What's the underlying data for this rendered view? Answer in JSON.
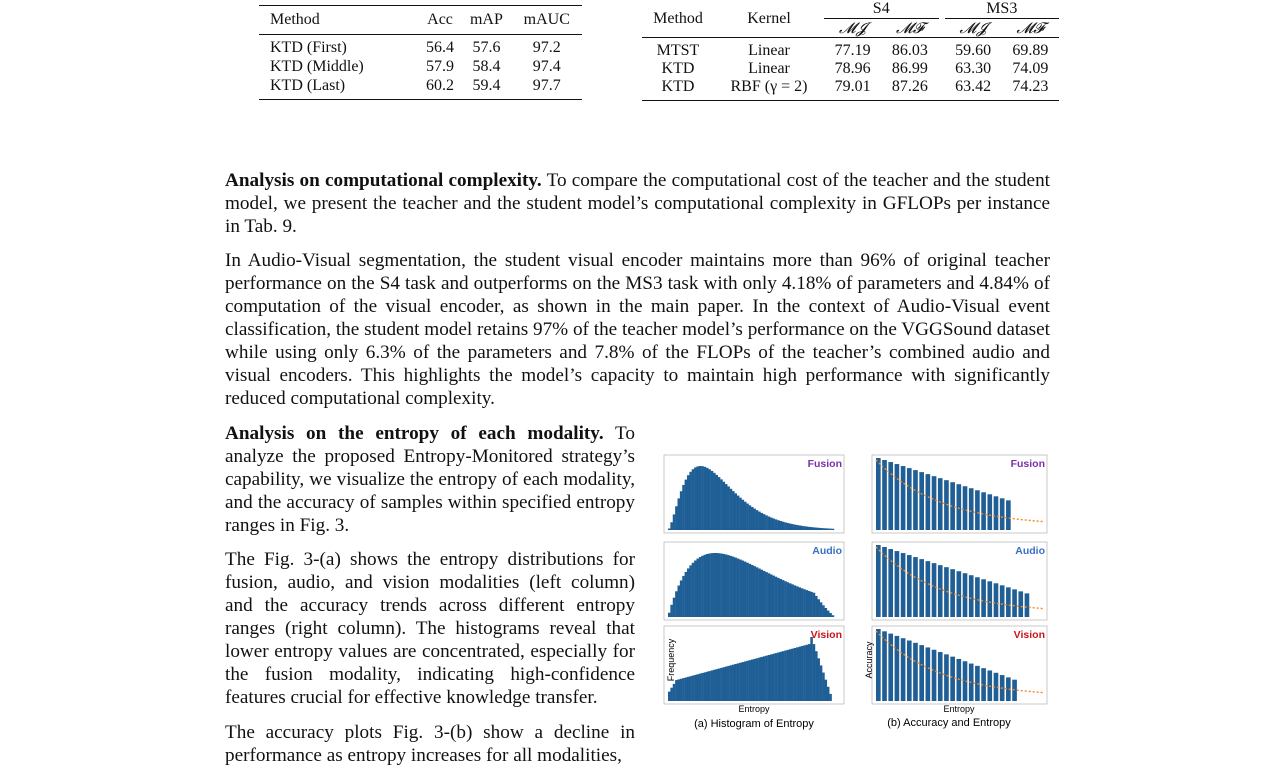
{
  "table_left": {
    "headers": [
      "Method",
      "Acc",
      "mAP",
      "mAUC"
    ],
    "rows": [
      [
        "KTD (First)",
        "56.4",
        "57.6",
        "97.2"
      ],
      [
        "KTD (Middle)",
        "57.9",
        "58.4",
        "97.4"
      ],
      [
        "KTD (Last)",
        "60.2",
        "59.4",
        "97.7"
      ]
    ]
  },
  "table_right": {
    "h_method": "Method",
    "h_kernel": "Kernel",
    "group1": "S4",
    "group2": "MS3",
    "sub_j": "𝓜𝓙",
    "sub_f": "𝓜𝓕",
    "rows": [
      [
        "MTST",
        "Linear",
        "77.19",
        "86.03",
        "59.60",
        "69.89"
      ],
      [
        "KTD",
        "Linear",
        "78.96",
        "86.99",
        "63.30",
        "74.09"
      ],
      [
        "KTD",
        "RBF (γ = 2)",
        "79.01",
        "87.26",
        "63.42",
        "74.23"
      ]
    ]
  },
  "para1": {
    "heading": "Analysis on computational complexity.",
    "body": " To compare the computational cost of the teacher and the student model, we present the teacher and the student model’s computational complexity in GFLOPs per instance in Tab. 9."
  },
  "para2": "In Audio-Visual segmentation, the student visual encoder maintains more than 96% of original teacher performance on the S4 task and outperforms on the MS3 task with only 4.18% of parameters and 4.84% of computation of the visual encoder, as shown in the main paper.  In the context of Audio-Visual event classification, the student model retains 97% of the teacher model’s performance on the VGGSound dataset while using only 6.3% of the parameters and 7.8% of the FLOPs of the teacher’s combined audio and visual encoders. This highlights the model’s capacity to maintain high performance with significantly reduced computational complexity.",
  "para3": {
    "heading": "Analysis on the entropy of each modality.",
    "body": " To analyze the proposed Entropy-Monitored strategy’s capability, we visualize the entropy of each modality, and the accuracy of samples within specified entropy ranges in Fig. 3."
  },
  "para4": "The Fig. 3-(a) shows the entropy distributions for fusion, audio, and vision modalities (left column) and the accuracy trends across different entropy ranges (right column). The histograms reveal that lower entropy values are concentrated, especially for the fusion modality, indicating high-confidence features crucial for effective knowledge transfer.",
  "para5": "The accuracy plots Fig. 3-(b) show a decline in performance as entropy increases for all modalities,",
  "figure": {
    "labels": [
      "Fusion",
      "Audio",
      "Vision"
    ],
    "label_colors": [
      "#7b2fa8",
      "#3a6fc4",
      "#c8161d"
    ],
    "bar_color": "#1f5f96",
    "trend_color": "#f08a2a",
    "x_label": "Entropy",
    "hist_y_label": "Frequency",
    "acc_y_label": "Accuracy",
    "caption_a": "(a) Histogram of Entropy",
    "caption_b": "(b) Accuracy and Entropy"
  }
}
